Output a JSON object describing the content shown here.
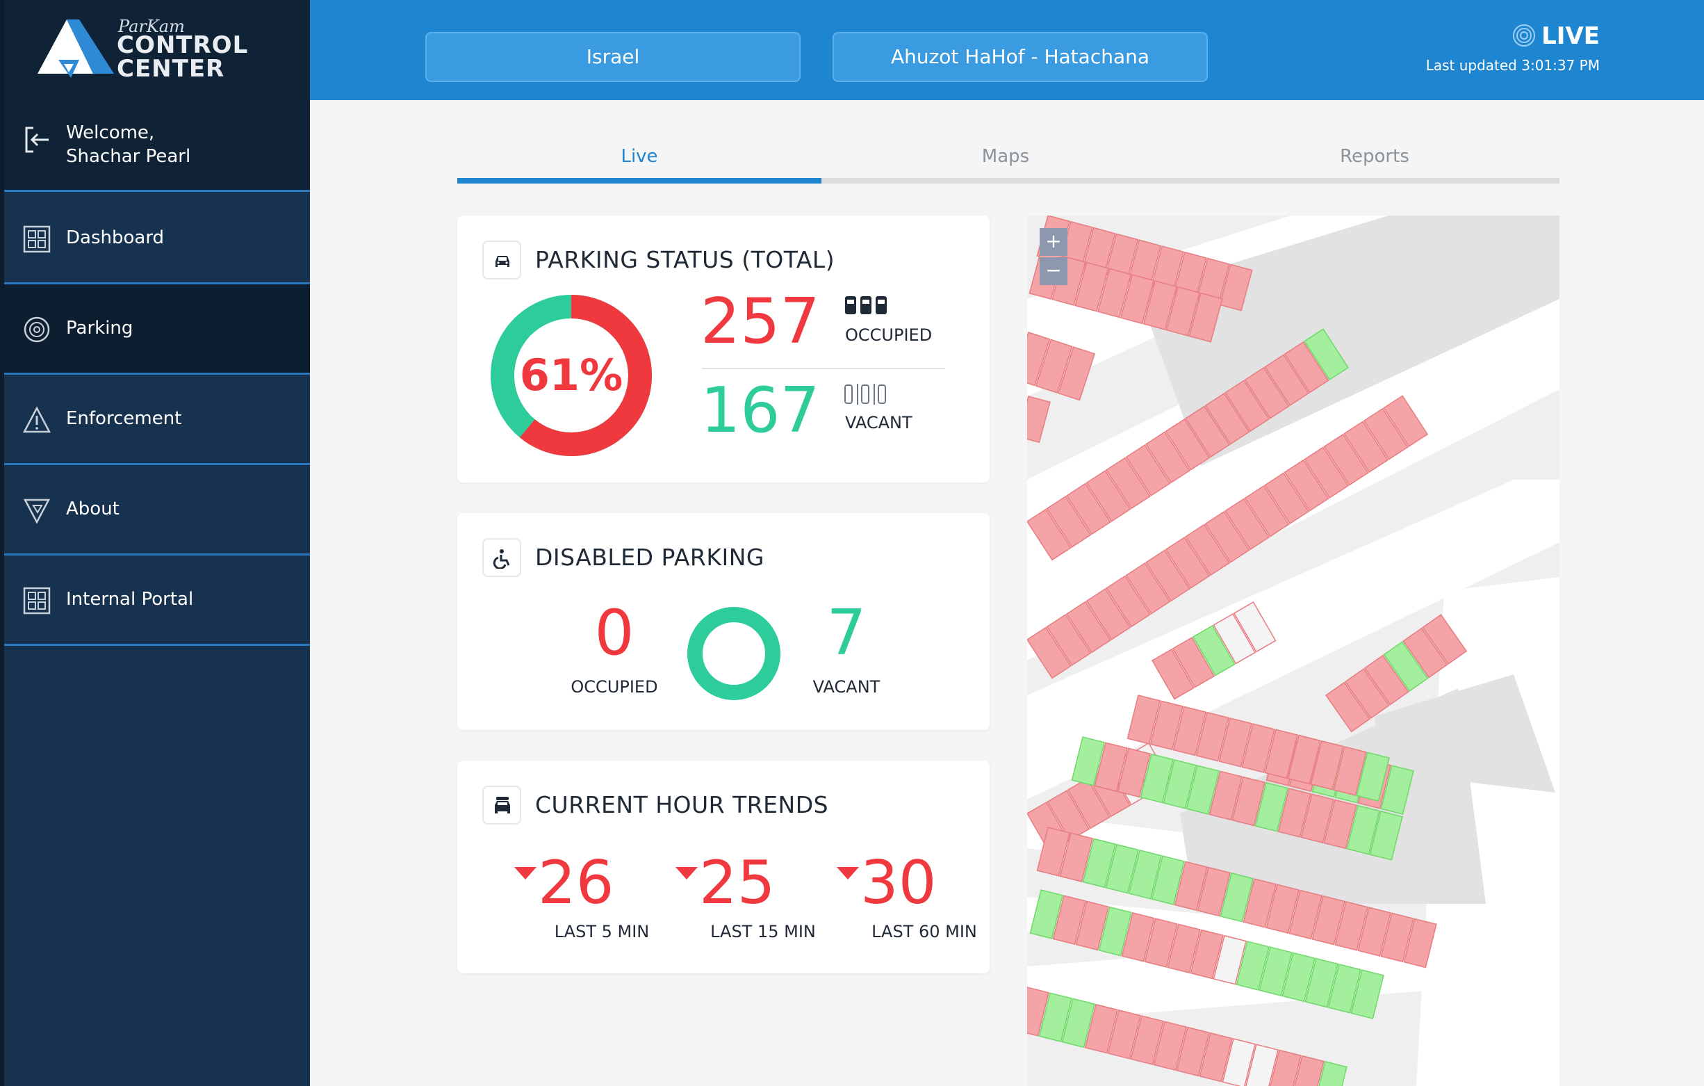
{
  "sidebar": {
    "logo_small": "ParKam",
    "logo_line1": "CONTROL",
    "logo_line2": "CENTER",
    "welcome_line1": "Welcome,",
    "welcome_line2": "Shachar Pearl",
    "items": [
      {
        "label": "Dashboard",
        "icon": "grid-icon"
      },
      {
        "label": "Parking",
        "icon": "target-icon"
      },
      {
        "label": "Enforcement",
        "icon": "warning-icon"
      },
      {
        "label": "About",
        "icon": "about-icon"
      },
      {
        "label": "Internal Portal",
        "icon": "grid-icon"
      }
    ]
  },
  "header": {
    "country": "Israel",
    "site": "Ahuzot HaHof - Hatachana",
    "live_label": "LIVE",
    "last_updated": "Last updated 3:01:37 PM"
  },
  "tabs": [
    {
      "label": "Live",
      "active": true
    },
    {
      "label": "Maps",
      "active": false
    },
    {
      "label": "Reports",
      "active": false
    }
  ],
  "parking_status": {
    "title": "PARKING STATUS (TOTAL)",
    "percent": "61%",
    "occupied_fraction": 0.61,
    "occupied": "257",
    "occupied_label": "OCCUPIED",
    "vacant": "167",
    "vacant_label": "VACANT"
  },
  "disabled_parking": {
    "title": "DISABLED PARKING",
    "occupied": "0",
    "occupied_label": "OCCUPIED",
    "vacant": "7",
    "vacant_label": "VACANT"
  },
  "trends": {
    "title": "CURRENT HOUR TRENDS",
    "items": [
      {
        "value": "26",
        "label": "LAST 5 MIN"
      },
      {
        "value": "25",
        "label": "LAST 15 MIN"
      },
      {
        "value": "30",
        "label": "LAST 60 MIN"
      }
    ]
  },
  "map": {
    "zoom_in": "+",
    "zoom_out": "−"
  },
  "colors": {
    "accent_blue": "#1e86d1",
    "occupied_red": "#f0393f",
    "vacant_green": "#2ecc9a",
    "spot_occupied": "#f4a3a6",
    "spot_vacant": "#a3ef9d"
  }
}
